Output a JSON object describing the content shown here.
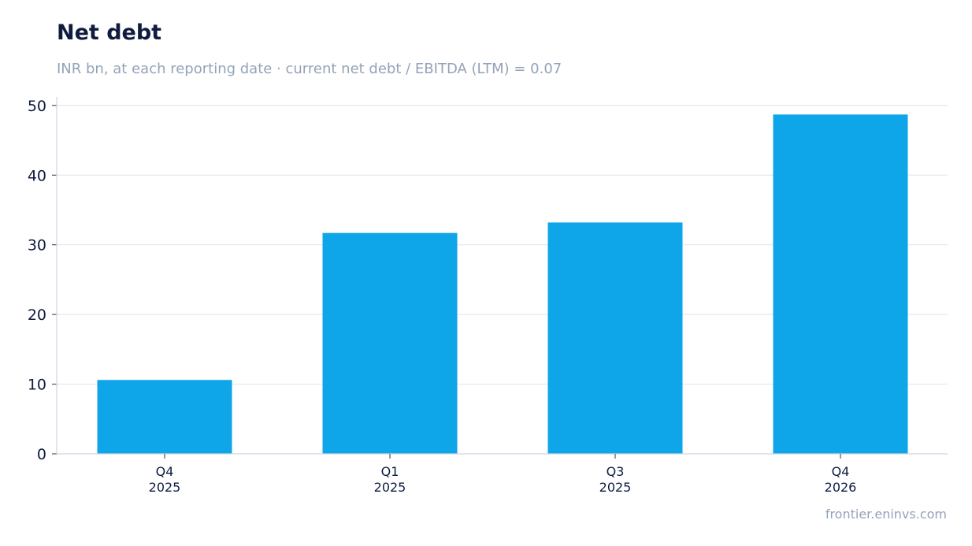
{
  "title": "Net debt",
  "subtitle": "INR bn, at each reporting date · current net debt / EBITDA (LTM) = 0.07",
  "source": "frontier.eninvs.com",
  "colors": {
    "bar": "#0ea5e9",
    "grid": "#e2e8f0",
    "axis": "#cbd5e1",
    "title": "#0f1c3f",
    "muted": "#94a3b8"
  },
  "chart_data": {
    "type": "bar",
    "categories": [
      [
        "Q4",
        "2025"
      ],
      [
        "Q1",
        "2025"
      ],
      [
        "Q3",
        "2025"
      ],
      [
        "Q4",
        "2026"
      ]
    ],
    "values": [
      10.6,
      31.7,
      33.2,
      48.7
    ],
    "ylim": [
      0,
      51
    ],
    "yticks": [
      0,
      10,
      20,
      30,
      40,
      50
    ],
    "grid": true,
    "legend": "none"
  }
}
